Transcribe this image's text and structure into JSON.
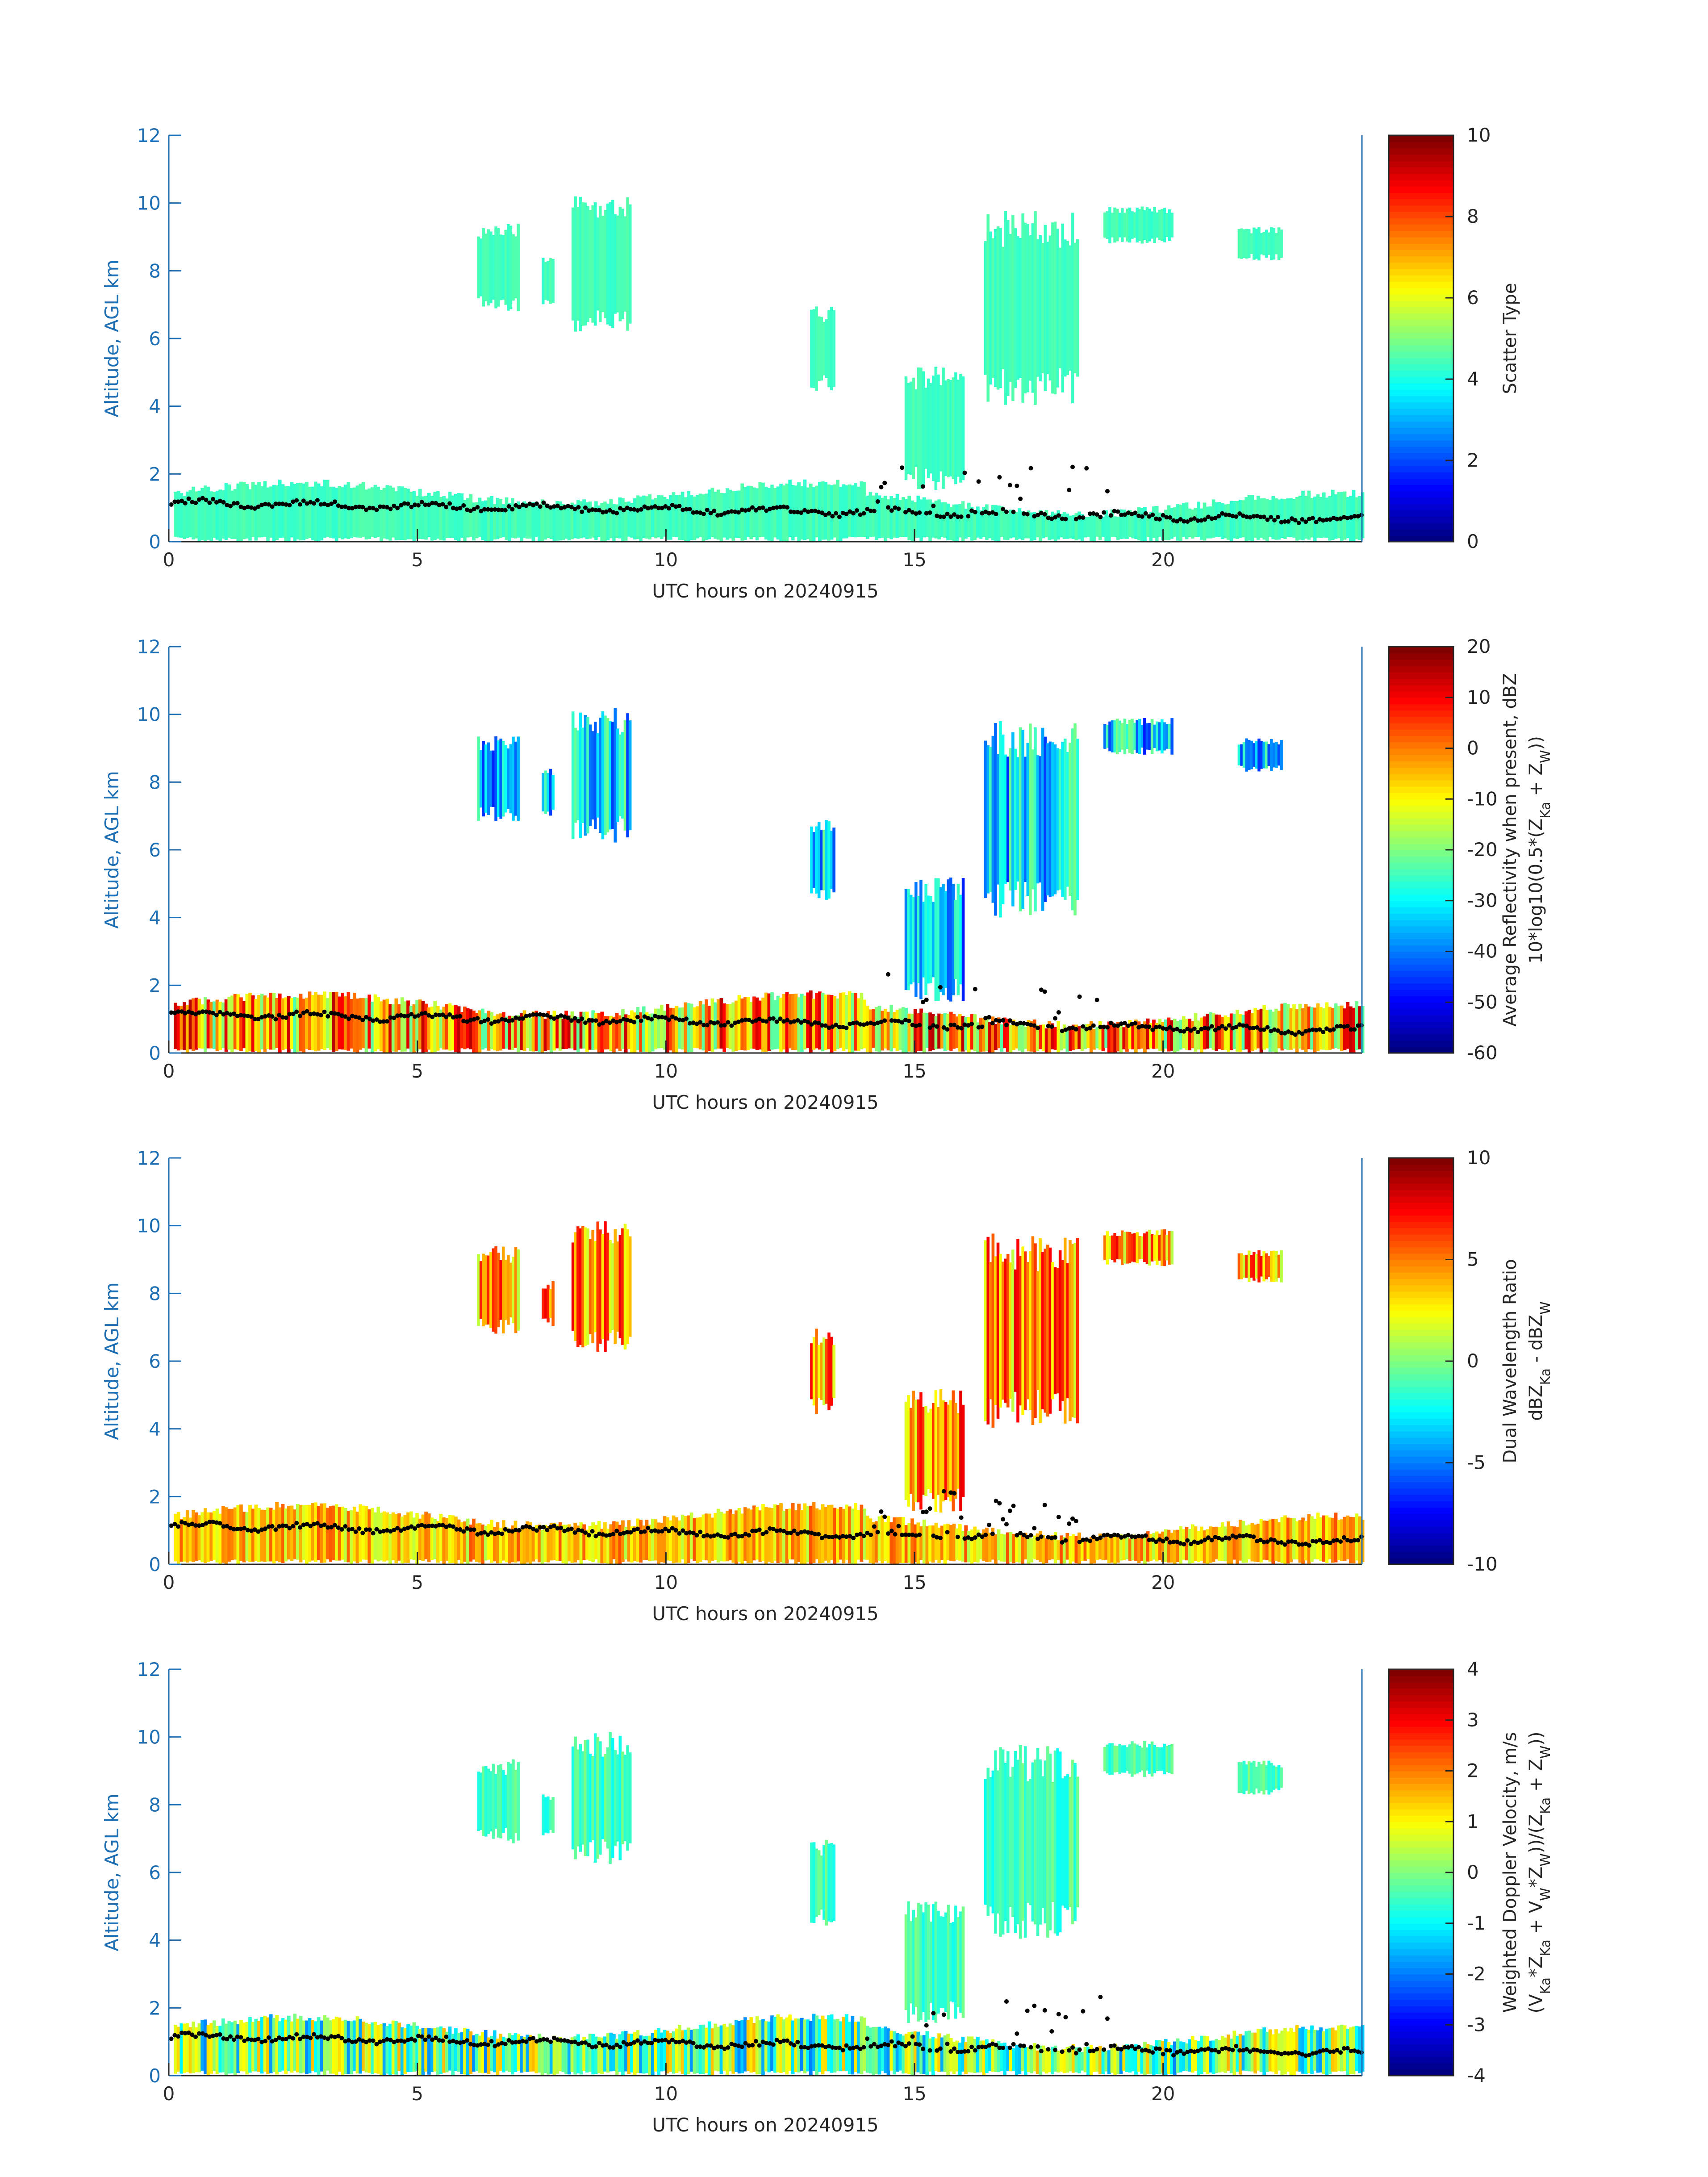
{
  "colors": {
    "axis": "#1f6fb4",
    "text": "#262626",
    "cloud_base": "#000000",
    "jet": [
      "#00008f",
      "#0000ff",
      "#0080ff",
      "#00ffff",
      "#80ff80",
      "#ffff00",
      "#ff8000",
      "#ff0000",
      "#800000"
    ]
  },
  "chart_data": [
    {
      "type": "heatmap",
      "xlabel": "UTC hours on 20240915",
      "ylabel": "Altitude, AGL km",
      "xlim": [
        0,
        24
      ],
      "ylim": [
        0,
        12
      ],
      "xticks": [
        "0",
        "5",
        "10",
        "15",
        "20"
      ],
      "yticks": [
        "0",
        "2",
        "4",
        "6",
        "8",
        "10",
        "12"
      ],
      "colorbar": {
        "label_lines": [
          "Scatter Type"
        ],
        "ticks": [
          "0",
          "2",
          "4",
          "6",
          "8",
          "10"
        ],
        "range": [
          0,
          10
        ]
      },
      "grid": false
    },
    {
      "type": "heatmap",
      "xlabel": "UTC hours on 20240915",
      "ylabel": "Altitude, AGL km",
      "xlim": [
        0,
        24
      ],
      "ylim": [
        0,
        12
      ],
      "xticks": [
        "0",
        "5",
        "10",
        "15",
        "20"
      ],
      "yticks": [
        "0",
        "2",
        "4",
        "6",
        "8",
        "10",
        "12"
      ],
      "colorbar": {
        "label_lines": [
          "Average Reflectivity when present, dBZ",
          "10*log10(0.5*(Z_Ka + Z_W))"
        ],
        "ticks": [
          "-60",
          "-50",
          "-40",
          "-30",
          "-20",
          "-10",
          "0",
          "10",
          "20"
        ],
        "range": [
          -60,
          20
        ]
      },
      "grid": false
    },
    {
      "type": "heatmap",
      "xlabel": "UTC hours on 20240915",
      "ylabel": "Altitude, AGL km",
      "xlim": [
        0,
        24
      ],
      "ylim": [
        0,
        12
      ],
      "xticks": [
        "0",
        "5",
        "10",
        "15",
        "20"
      ],
      "yticks": [
        "0",
        "2",
        "4",
        "6",
        "8",
        "10",
        "12"
      ],
      "colorbar": {
        "label_lines": [
          "Dual Wavelength Ratio",
          "dBZ_Ka - dBZ_W"
        ],
        "ticks": [
          "-10",
          "-5",
          "0",
          "5",
          "10"
        ],
        "range": [
          -10,
          10
        ]
      },
      "grid": false
    },
    {
      "type": "heatmap",
      "xlabel": "UTC hours on 20240915",
      "ylabel": "Altitude, AGL km",
      "xlim": [
        0,
        24
      ],
      "ylim": [
        0,
        12
      ],
      "xticks": [
        "0",
        "5",
        "10",
        "15",
        "20"
      ],
      "yticks": [
        "0",
        "2",
        "4",
        "6",
        "8",
        "10",
        "12"
      ],
      "colorbar": {
        "label_lines": [
          "Weighted Doppler Velocity, m/s",
          "(V_Ka*Z_Ka + V_W*Z_W))/(Z_Ka + Z_W))"
        ],
        "ticks": [
          "-4",
          "-3",
          "-2",
          "-1",
          "0",
          "1",
          "2",
          "3",
          "4"
        ],
        "range": [
          -4,
          4
        ]
      },
      "grid": false
    }
  ]
}
